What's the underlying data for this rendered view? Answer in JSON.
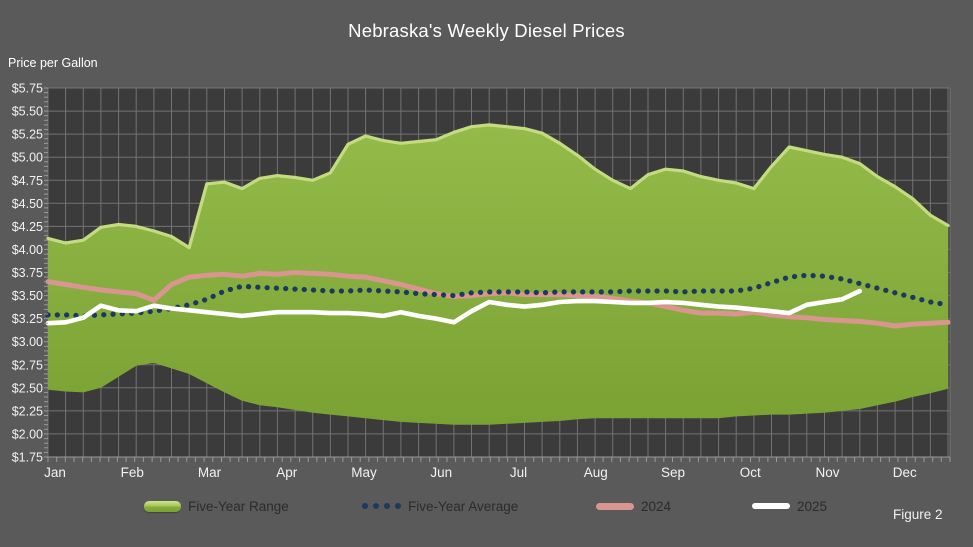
{
  "title": "Nebraska's Weekly Diesel Prices",
  "y_axis_title": "Price per Gallon",
  "figure_label": "Figure 2",
  "legend": [
    {
      "label": "Five-Year Range",
      "type": "area"
    },
    {
      "label": "Five-Year Average",
      "type": "dots"
    },
    {
      "label": "2024",
      "type": "line"
    },
    {
      "label": "2025",
      "type": "line"
    }
  ],
  "colors": {
    "background": "#5a5a5a",
    "plot_background": "#3b3b3b",
    "gridline": "#7d7d7d",
    "tick": "#9a9a9a",
    "range_fill_top": "#94bb4a",
    "range_fill_bottom": "#7aa233",
    "range_edge": "#c3dc80",
    "average": "#1c3a5e",
    "y2024": "#d9958f",
    "y2025": "#ffffff",
    "axis_text": "#f2f2f2",
    "legend_text": "#2b2b2b"
  },
  "chart_data": {
    "type": "area",
    "title": "Nebraska's Weekly Diesel Prices",
    "ylabel": "Price per Gallon",
    "xlabel": "",
    "x_unit": "week",
    "grid": true,
    "legend_position": "bottom",
    "ylim": [
      1.75,
      5.75
    ],
    "ytick_step": 0.25,
    "ytick_labels": [
      "$5.75",
      "$5.50",
      "$5.25",
      "$5.00",
      "$4.75",
      "$4.50",
      "$4.25",
      "$4.00",
      "$3.75",
      "$3.50",
      "$3.25",
      "$3.00",
      "$2.75",
      "$2.50",
      "$2.25",
      "$2.00",
      "$1.75"
    ],
    "categories": [
      "Jan",
      "Feb",
      "Mar",
      "Apr",
      "May",
      "Jun",
      "Jul",
      "Aug",
      "Sep",
      "Oct",
      "Nov",
      "Dec"
    ],
    "series": [
      {
        "name": "Five-Year Range (max)",
        "style": "area-top",
        "values": [
          4.12,
          4.07,
          4.1,
          4.24,
          4.27,
          4.25,
          4.2,
          4.14,
          4.02,
          4.71,
          4.73,
          4.66,
          4.77,
          4.8,
          4.78,
          4.75,
          4.83,
          5.14,
          5.23,
          5.18,
          5.15,
          5.17,
          5.19,
          5.27,
          5.33,
          5.35,
          5.33,
          5.31,
          5.26,
          5.15,
          5.02,
          4.87,
          4.75,
          4.66,
          4.81,
          4.87,
          4.85,
          4.79,
          4.75,
          4.72,
          4.66,
          4.9,
          5.11,
          5.07,
          5.03,
          5.0,
          4.93,
          4.79,
          4.68,
          4.55,
          4.37,
          4.26
        ]
      },
      {
        "name": "Five-Year Range (min)",
        "style": "area-bottom",
        "values": [
          2.48,
          2.46,
          2.45,
          2.5,
          2.62,
          2.74,
          2.77,
          2.71,
          2.65,
          2.55,
          2.45,
          2.36,
          2.31,
          2.29,
          2.26,
          2.23,
          2.21,
          2.19,
          2.17,
          2.15,
          2.13,
          2.12,
          2.11,
          2.1,
          2.1,
          2.1,
          2.11,
          2.12,
          2.13,
          2.14,
          2.16,
          2.17,
          2.17,
          2.17,
          2.17,
          2.17,
          2.17,
          2.17,
          2.17,
          2.19,
          2.2,
          2.21,
          2.21,
          2.22,
          2.23,
          2.25,
          2.27,
          2.31,
          2.35,
          2.4,
          2.44,
          2.49
        ]
      },
      {
        "name": "Five-Year Average",
        "style": "dotted",
        "values": [
          3.29,
          3.29,
          3.28,
          3.29,
          3.3,
          3.31,
          3.33,
          3.36,
          3.4,
          3.46,
          3.55,
          3.6,
          3.59,
          3.58,
          3.57,
          3.56,
          3.55,
          3.55,
          3.56,
          3.55,
          3.54,
          3.52,
          3.51,
          3.5,
          3.53,
          3.54,
          3.54,
          3.54,
          3.53,
          3.54,
          3.54,
          3.54,
          3.54,
          3.55,
          3.55,
          3.55,
          3.54,
          3.55,
          3.55,
          3.55,
          3.58,
          3.64,
          3.7,
          3.72,
          3.71,
          3.68,
          3.63,
          3.58,
          3.53,
          3.48,
          3.43,
          3.4
        ]
      },
      {
        "name": "2024",
        "style": "solid",
        "values": [
          3.65,
          3.62,
          3.59,
          3.56,
          3.54,
          3.52,
          3.45,
          3.62,
          3.7,
          3.72,
          3.73,
          3.71,
          3.74,
          3.73,
          3.75,
          3.74,
          3.73,
          3.71,
          3.7,
          3.66,
          3.62,
          3.57,
          3.52,
          3.49,
          3.5,
          3.52,
          3.53,
          3.51,
          3.51,
          3.51,
          3.5,
          3.49,
          3.47,
          3.44,
          3.42,
          3.38,
          3.34,
          3.31,
          3.31,
          3.3,
          3.32,
          3.29,
          3.27,
          3.26,
          3.24,
          3.23,
          3.22,
          3.2,
          3.17,
          3.19,
          3.2,
          3.21
        ]
      },
      {
        "name": "2025",
        "style": "solid",
        "values": [
          3.2,
          3.21,
          3.26,
          3.39,
          3.34,
          3.33,
          3.39,
          3.36,
          3.34,
          3.32,
          3.3,
          3.28,
          3.3,
          3.32,
          3.32,
          3.32,
          3.31,
          3.31,
          3.3,
          3.28,
          3.32,
          3.28,
          3.25,
          3.21,
          3.33,
          3.43,
          3.4,
          3.38,
          3.4,
          3.43,
          3.44,
          3.44,
          3.43,
          3.42,
          3.42,
          3.43,
          3.42,
          3.4,
          3.38,
          3.37,
          3.35,
          3.33,
          3.31,
          3.4,
          3.43,
          3.46,
          3.55,
          null,
          null,
          null,
          null,
          null
        ]
      }
    ]
  }
}
